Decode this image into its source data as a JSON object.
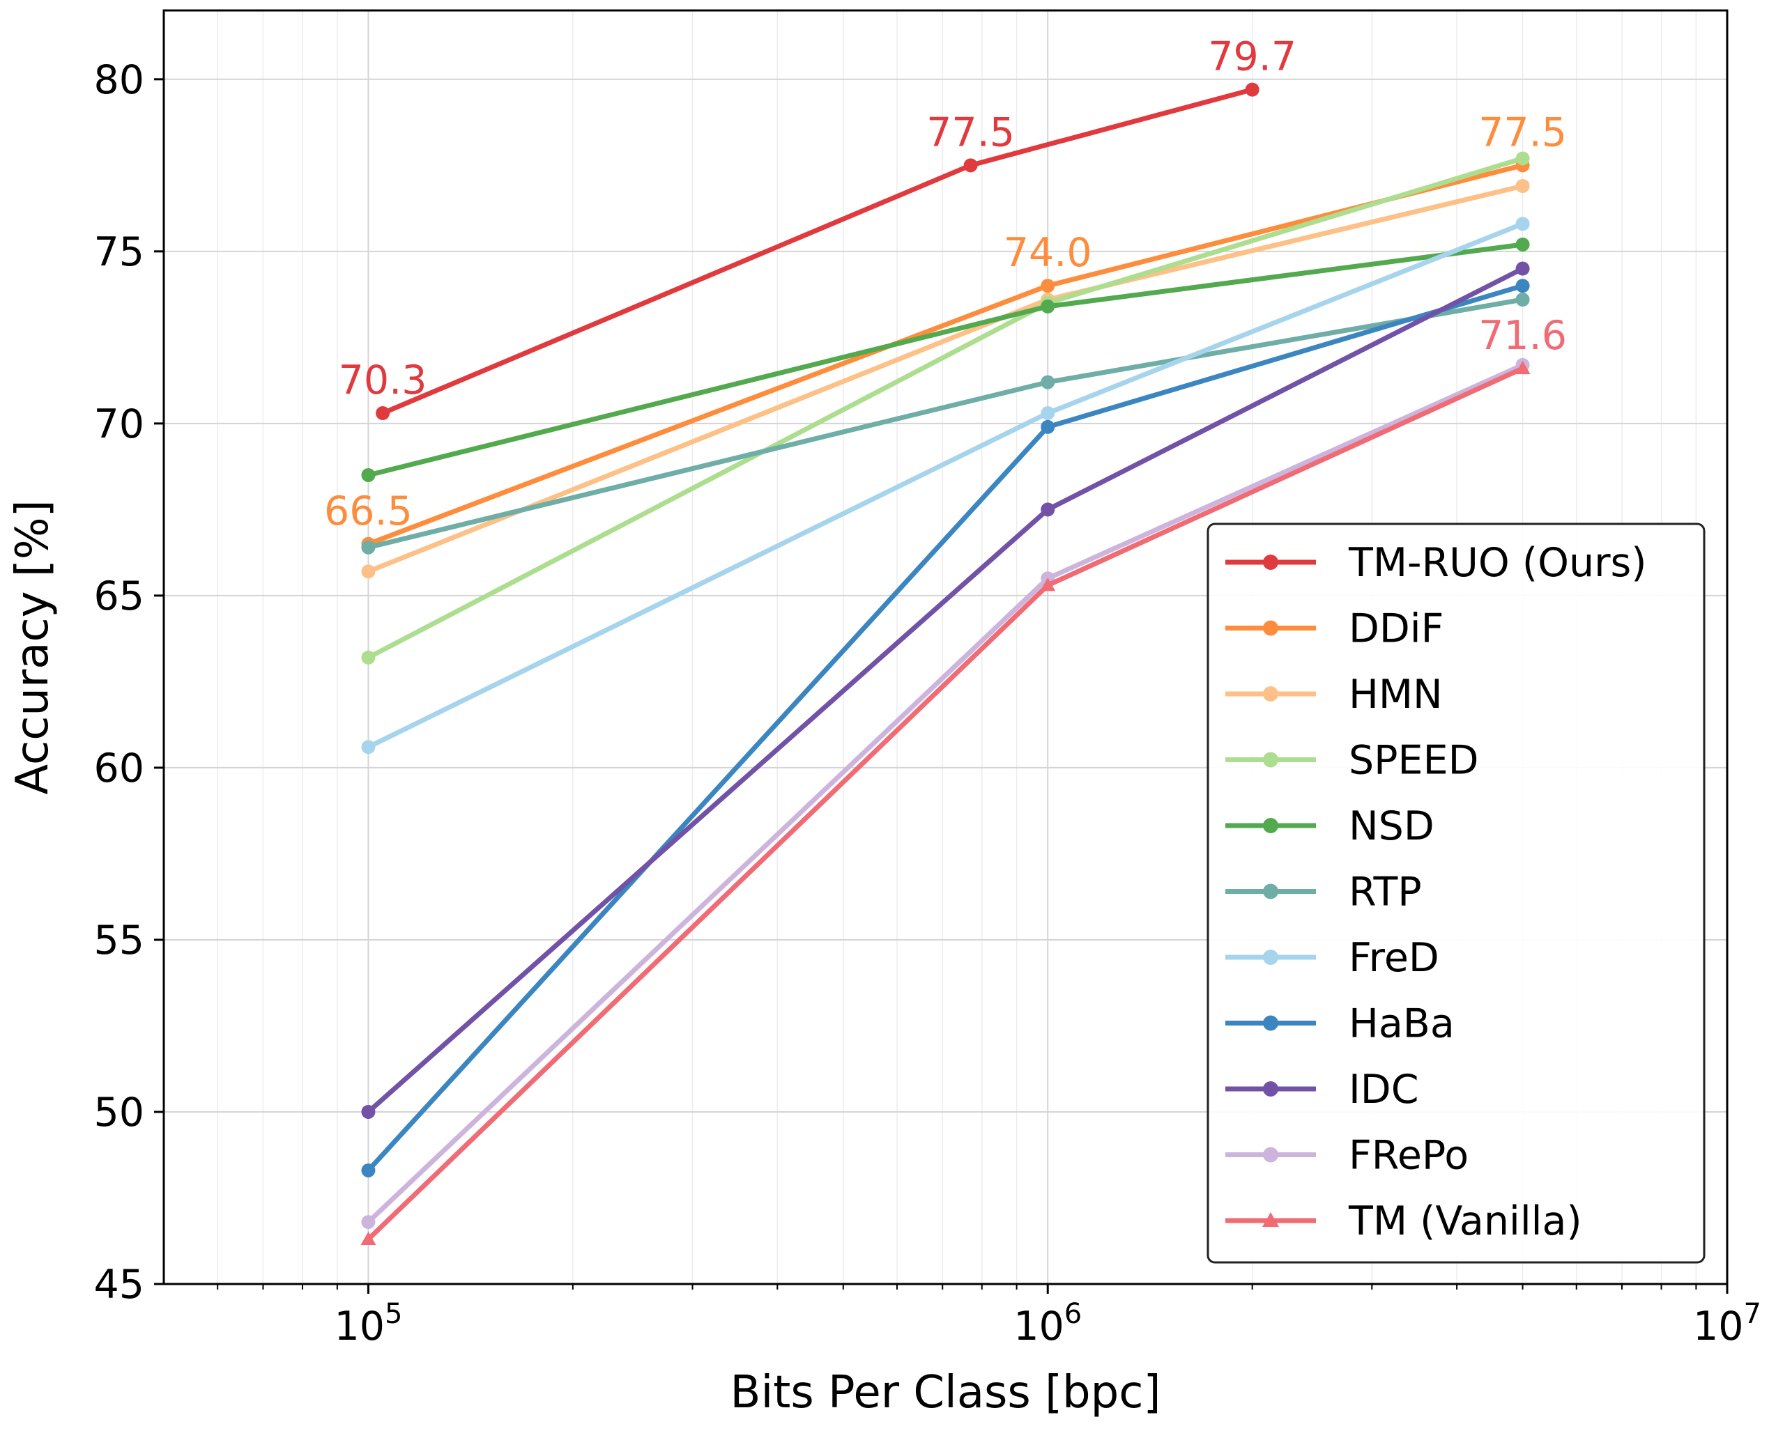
{
  "chart_data": {
    "type": "line",
    "title": "",
    "xlabel": "Bits Per Class [bpc]",
    "ylabel": "Accuracy [%]",
    "xscale": "log",
    "xlim": [
      50000,
      10000000
    ],
    "ylim": [
      45,
      82
    ],
    "grid": true,
    "legend_position": "lower-right",
    "x_ticks": [
      {
        "value": 100000,
        "base": "10",
        "exp": "5"
      },
      {
        "value": 1000000,
        "base": "10",
        "exp": "6"
      },
      {
        "value": 10000000,
        "base": "10",
        "exp": "7"
      }
    ],
    "y_ticks": [
      {
        "value": 45,
        "label": "45"
      },
      {
        "value": 50,
        "label": "50"
      },
      {
        "value": 55,
        "label": "55"
      },
      {
        "value": 60,
        "label": "60"
      },
      {
        "value": 65,
        "label": "65"
      },
      {
        "value": 70,
        "label": "70"
      },
      {
        "value": 75,
        "label": "75"
      },
      {
        "value": 80,
        "label": "80"
      }
    ],
    "series": [
      {
        "name": "TM-RUO (Ours)",
        "color": "#e03a3e",
        "marker": "circle",
        "x": [
          105000,
          770000,
          2000000
        ],
        "y": [
          70.3,
          77.5,
          79.7
        ]
      },
      {
        "name": "DDiF",
        "color": "#fd8d3c",
        "marker": "circle",
        "x": [
          100000,
          1000000,
          5000000
        ],
        "y": [
          66.5,
          74.0,
          77.5
        ]
      },
      {
        "name": "HMN",
        "color": "#fdc086",
        "marker": "circle",
        "x": [
          100000,
          1000000,
          5000000
        ],
        "y": [
          65.7,
          73.6,
          76.9
        ]
      },
      {
        "name": "SPEED",
        "color": "#addd8e",
        "marker": "circle",
        "x": [
          100000,
          1000000,
          5000000
        ],
        "y": [
          63.2,
          73.5,
          77.7
        ]
      },
      {
        "name": "NSD",
        "color": "#52a94e",
        "marker": "circle",
        "x": [
          100000,
          1000000,
          5000000
        ],
        "y": [
          68.5,
          73.4,
          75.2
        ]
      },
      {
        "name": "RTP",
        "color": "#6eaea6",
        "marker": "circle",
        "x": [
          100000,
          1000000,
          5000000
        ],
        "y": [
          66.4,
          71.2,
          73.6
        ]
      },
      {
        "name": "FreD",
        "color": "#a6d4ec",
        "marker": "circle",
        "x": [
          100000,
          1000000,
          5000000
        ],
        "y": [
          60.6,
          70.3,
          75.8
        ]
      },
      {
        "name": "HaBa",
        "color": "#3b86c0",
        "marker": "circle",
        "x": [
          100000,
          1000000,
          5000000
        ],
        "y": [
          48.3,
          69.9,
          74.0
        ]
      },
      {
        "name": "IDC",
        "color": "#7152a6",
        "marker": "circle",
        "x": [
          100000,
          1000000,
          5000000
        ],
        "y": [
          50.0,
          67.5,
          74.5
        ]
      },
      {
        "name": "FRePo",
        "color": "#cdb4dc",
        "marker": "circle",
        "x": [
          100000,
          1000000,
          5000000
        ],
        "y": [
          46.8,
          65.5,
          71.7
        ]
      },
      {
        "name": "TM (Vanilla)",
        "color": "#f06b74",
        "marker": "triangle",
        "x": [
          100000,
          1000000,
          5000000
        ],
        "y": [
          46.3,
          65.3,
          71.6
        ]
      }
    ],
    "annotations": [
      {
        "text": "70.3",
        "x": 105000,
        "y": 70.3,
        "color": "#e03a3e"
      },
      {
        "text": "77.5",
        "x": 770000,
        "y": 77.5,
        "color": "#e03a3e"
      },
      {
        "text": "79.7",
        "x": 2000000,
        "y": 79.7,
        "color": "#e03a3e"
      },
      {
        "text": "66.5",
        "x": 100000,
        "y": 66.5,
        "color": "#fd8d3c"
      },
      {
        "text": "74.0",
        "x": 1000000,
        "y": 74.0,
        "color": "#fd8d3c"
      },
      {
        "text": "77.5",
        "x": 5000000,
        "y": 77.5,
        "color": "#fd8d3c"
      },
      {
        "text": "71.6",
        "x": 5000000,
        "y": 71.6,
        "color": "#f06b74"
      }
    ]
  }
}
